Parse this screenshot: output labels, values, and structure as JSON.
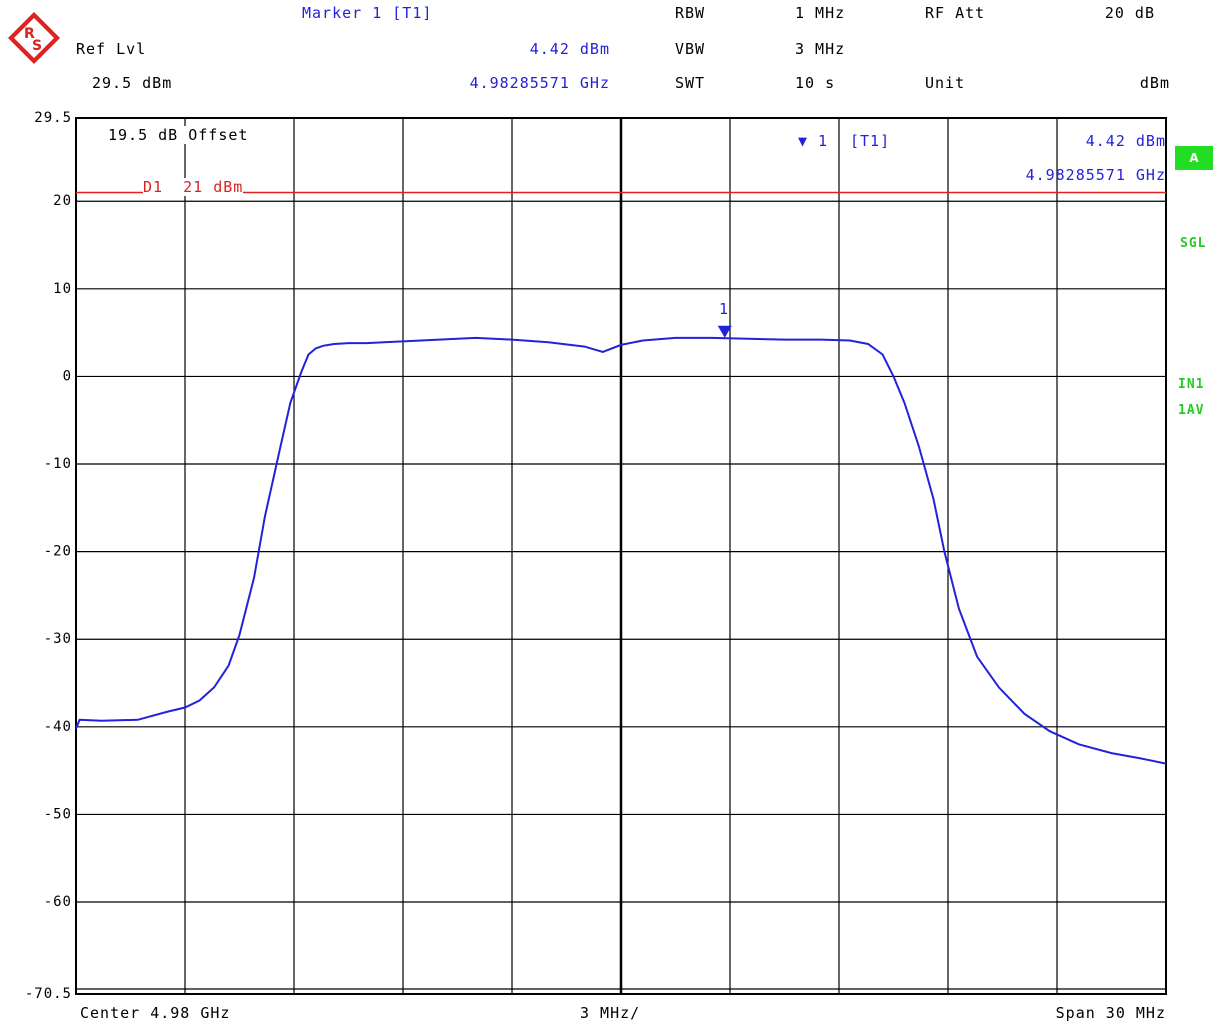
{
  "header": {
    "marker_label": "Marker 1 [T1]",
    "ref_lvl_label": "Ref Lvl",
    "marker_level": "4.42 dBm",
    "ref_level": "29.5 dBm",
    "marker_freq": "4.98285571 GHz",
    "rbw_label": "RBW",
    "rbw_value": "1 MHz",
    "rf_att_label": "RF Att",
    "rf_att_value": "20 dB",
    "vbw_label": "VBW",
    "vbw_value": "3 MHz",
    "swt_label": "SWT",
    "swt_value": "10 s",
    "unit_label": "Unit",
    "unit_value": "dBm"
  },
  "plot": {
    "offset_note": "19.5 dB Offset",
    "marker_box_id": "1",
    "marker_box_trace": "[T1]",
    "marker_box_level": "4.42 dBm",
    "marker_box_freq": "4.98285571 GHz",
    "display_line_label": "D1  21 dBm",
    "marker_flag": "1"
  },
  "side_labels": {
    "a_badge": "A",
    "sgl": "SGL",
    "in1": "IN1",
    "avg": "1AV"
  },
  "footer": {
    "center": "Center 4.98 GHz",
    "div": "3 MHz/",
    "span": "Span 30 MHz"
  },
  "colors": {
    "trace": "#2222dd",
    "display_line": "#dd2222",
    "grid": "#000000",
    "status": "#22dd22"
  },
  "chart_data": {
    "type": "line",
    "ylim": [
      -70.5,
      29.5
    ],
    "xlim": [
      4.965,
      4.995
    ],
    "x_unit": "GHz",
    "y_unit": "dBm",
    "y_ticks": [
      "29.5",
      "20",
      "10",
      "0",
      "-10",
      "-20",
      "-30",
      "-40",
      "-50",
      "-60",
      "-70.5"
    ],
    "y_tick_values": [
      29.5,
      20,
      10,
      0,
      -10,
      -20,
      -30,
      -40,
      -50,
      -60,
      -70.5
    ],
    "grid": true,
    "display_line": {
      "label": "D1",
      "value": 21
    },
    "marker": {
      "x": 4.98285571,
      "y": 4.42
    },
    "series": [
      {
        "values_x": [
          4.965,
          4.9651,
          4.9657,
          4.9667,
          4.9675,
          4.968,
          4.9684,
          4.9688,
          4.9692,
          4.9695,
          4.9699,
          4.9702,
          4.9706,
          4.9709,
          4.9712,
          4.9714,
          4.9716,
          4.9718,
          4.9721,
          4.9725,
          4.973,
          4.974,
          4.975,
          4.976,
          4.977,
          4.978,
          4.979,
          4.9795,
          4.98,
          4.9806,
          4.9815,
          4.9825,
          4.9835,
          4.9845,
          4.9855,
          4.9863,
          4.9868,
          4.9872,
          4.9875,
          4.9878,
          4.9882,
          4.9886,
          4.9889,
          4.9893,
          4.9898,
          4.9904,
          4.9911,
          4.9918,
          4.9926,
          4.9935,
          4.9943,
          4.995
        ],
        "values_y": [
          -40.2,
          -39.2,
          -39.3,
          -39.2,
          -38.3,
          -37.8,
          -37.0,
          -35.5,
          -33.0,
          -29.5,
          -23.0,
          -16.0,
          -8.5,
          -3.0,
          0.5,
          2.5,
          3.2,
          3.5,
          3.7,
          3.8,
          3.8,
          4.0,
          4.2,
          4.4,
          4.2,
          3.9,
          3.4,
          2.8,
          3.6,
          4.1,
          4.4,
          4.4,
          4.3,
          4.2,
          4.2,
          4.1,
          3.7,
          2.5,
          0.0,
          -3.0,
          -8.0,
          -14.0,
          -20.0,
          -26.5,
          -32.0,
          -35.5,
          -38.5,
          -40.5,
          -42.0,
          -43.0,
          -43.6,
          -44.2
        ]
      }
    ]
  }
}
